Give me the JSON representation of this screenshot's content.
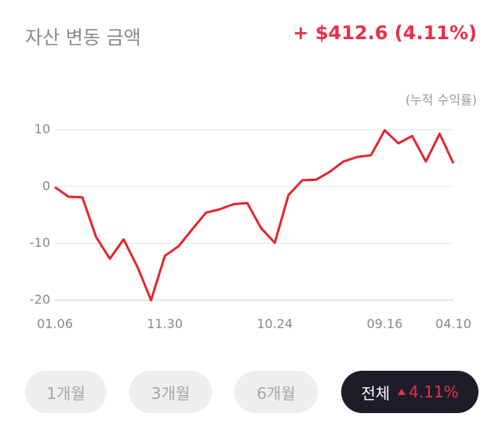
{
  "header": {
    "title": "자산 변동 금액",
    "change": "+ $412.6 (4.11%)",
    "unit_note": "(누적 수익률)"
  },
  "chart_data": {
    "type": "line",
    "categories": [
      "01.06",
      null,
      null,
      null,
      null,
      null,
      null,
      null,
      "11.30",
      null,
      null,
      null,
      null,
      null,
      null,
      null,
      "10.24",
      null,
      null,
      null,
      null,
      null,
      null,
      null,
      "09.16",
      null,
      null,
      null,
      null,
      "04.10"
    ],
    "series": [
      {
        "color": "#e0282e",
        "values": [
          -0.1,
          -1.8,
          -1.9,
          -8.9,
          -12.7,
          -9.3,
          -14.1,
          -20,
          -12.2,
          -10.5,
          -7.5,
          -4.6,
          -4.0,
          -3.1,
          -2.9,
          -7.3,
          -9.9,
          -1.5,
          1.1,
          1.2,
          2.6,
          4.4,
          5.2,
          5.5,
          9.9,
          7.6,
          8.9,
          4.4,
          9.3,
          4.1
        ]
      }
    ],
    "ylim": [
      -20,
      12
    ],
    "yticks": [
      -20,
      -10,
      0,
      10
    ],
    "grid": true
  },
  "buttons": [
    {
      "label": "1개월"
    },
    {
      "label": "3개월"
    },
    {
      "label": "6개월"
    },
    {
      "label": "전체",
      "change": "4.11%"
    }
  ]
}
